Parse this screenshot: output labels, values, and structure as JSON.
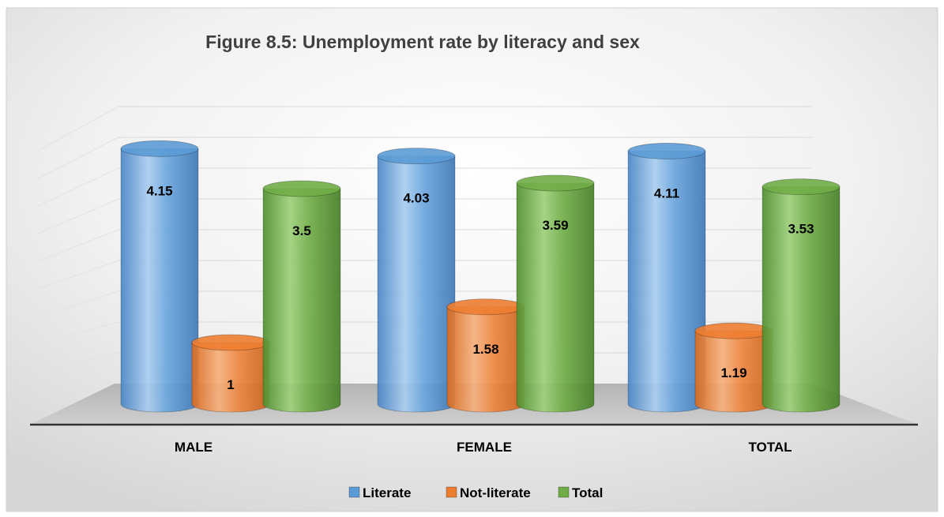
{
  "chart_data": {
    "type": "bar",
    "style": "3d-cylinder",
    "title": "Figure 8.5: Unemployment rate by literacy and  sex",
    "categories": [
      "MALE",
      "FEMALE",
      "TOTAL"
    ],
    "series": [
      {
        "name": "Literate",
        "values": [
          4.15,
          4.03,
          4.11
        ],
        "color": "#5b9bd5"
      },
      {
        "name": "Not-literate",
        "values": [
          1,
          1.58,
          1.19
        ],
        "color": "#ed7d31"
      },
      {
        "name": "Total",
        "values": [
          3.5,
          3.59,
          3.53
        ],
        "color": "#70ad47"
      }
    ],
    "data_labels": [
      [
        "4.15",
        "4.03",
        "4.11"
      ],
      [
        "1",
        "1.58",
        "1.19"
      ],
      [
        "3.5",
        "3.59",
        "3.53"
      ]
    ],
    "ylim": [
      0,
      4.5
    ],
    "grid": true,
    "legend_position": "bottom"
  }
}
